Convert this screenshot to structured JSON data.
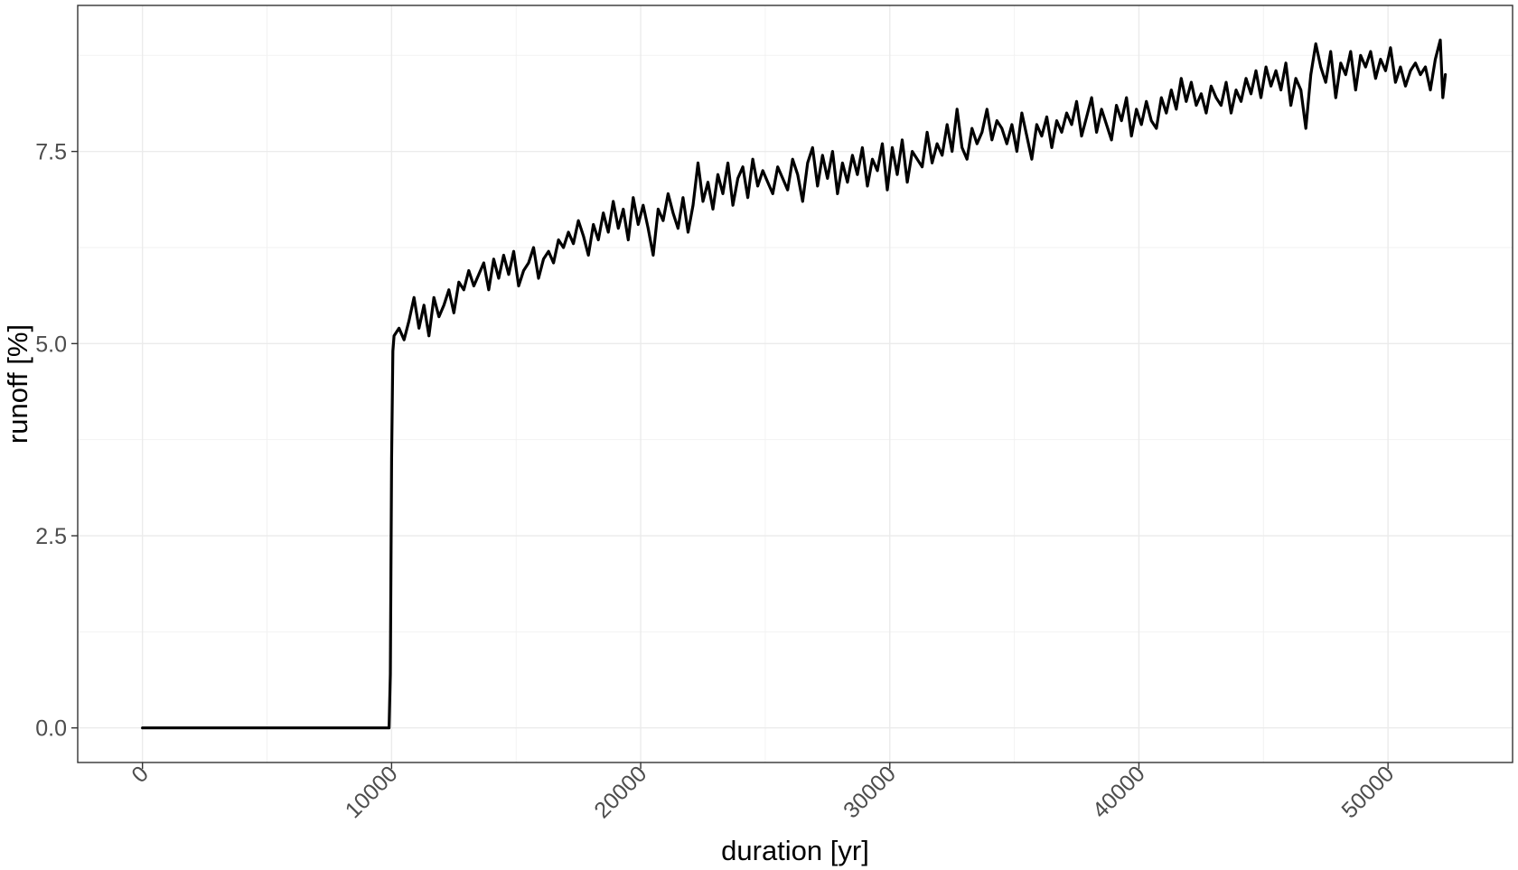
{
  "chart_data": {
    "type": "line",
    "title": "",
    "xlabel": "duration [yr]",
    "ylabel": "runoff [%]",
    "xlim": [
      -2600,
      55000
    ],
    "ylim": [
      -0.45,
      9.4
    ],
    "x_ticks": [
      0,
      10000,
      20000,
      30000,
      40000,
      50000
    ],
    "x_tick_labels": [
      "0",
      "10000",
      "20000",
      "30000",
      "40000",
      "50000"
    ],
    "y_ticks": [
      0,
      2.5,
      5,
      7.5
    ],
    "y_tick_labels": [
      "0.0",
      "2.5",
      "5.0",
      "7.5"
    ],
    "grid": true,
    "legend": "none",
    "line_color": "#000000",
    "series": [
      {
        "x": [
          0,
          9900,
          9950,
          10000,
          10050,
          10100,
          10300,
          10500,
          10700,
          10900,
          11100,
          11300,
          11500,
          11700,
          11900,
          12100,
          12300,
          12500,
          12700,
          12900,
          13100,
          13300,
          13500,
          13700,
          13900,
          14100,
          14300,
          14500,
          14700,
          14900,
          15100,
          15300,
          15500,
          15700,
          15900,
          16100,
          16300,
          16500,
          16700,
          16900,
          17100,
          17300,
          17500,
          17700,
          17900,
          18100,
          18300,
          18500,
          18700,
          18900,
          19100,
          19300,
          19500,
          19700,
          19900,
          20100,
          20300,
          20500,
          20700,
          20900,
          21100,
          21300,
          21500,
          21700,
          21900,
          22100,
          22300,
          22500,
          22700,
          22900,
          23100,
          23300,
          23500,
          23700,
          23900,
          24100,
          24300,
          24500,
          24700,
          24900,
          25100,
          25300,
          25500,
          25700,
          25900,
          26100,
          26300,
          26500,
          26700,
          26900,
          27100,
          27300,
          27500,
          27700,
          27900,
          28100,
          28300,
          28500,
          28700,
          28900,
          29100,
          29300,
          29500,
          29700,
          29900,
          30100,
          30300,
          30500,
          30700,
          30900,
          31100,
          31300,
          31500,
          31700,
          31900,
          32100,
          32300,
          32500,
          32700,
          32900,
          33100,
          33300,
          33500,
          33700,
          33900,
          34100,
          34300,
          34500,
          34700,
          34900,
          35100,
          35300,
          35500,
          35700,
          35900,
          36100,
          36300,
          36500,
          36700,
          36900,
          37100,
          37300,
          37500,
          37700,
          37900,
          38100,
          38300,
          38500,
          38700,
          38900,
          39100,
          39300,
          39500,
          39700,
          39900,
          40100,
          40300,
          40500,
          40700,
          40900,
          41100,
          41300,
          41500,
          41700,
          41900,
          42100,
          42300,
          42500,
          42700,
          42900,
          43100,
          43300,
          43500,
          43700,
          43900,
          44100,
          44300,
          44500,
          44700,
          44900,
          45100,
          45300,
          45500,
          45700,
          45900,
          46100,
          46300,
          46500,
          46700,
          46900,
          47100,
          47300,
          47500,
          47700,
          47900,
          48100,
          48300,
          48500,
          48700,
          48900,
          49100,
          49300,
          49500,
          49700,
          49900,
          50100,
          50300,
          50500,
          50700,
          50900,
          51100,
          51300,
          51500,
          51700,
          51900,
          52100,
          52200,
          52300
        ],
        "y": [
          0,
          0,
          0.7,
          3.5,
          4.9,
          5.1,
          5.2,
          5.05,
          5.3,
          5.6,
          5.2,
          5.5,
          5.1,
          5.6,
          5.35,
          5.5,
          5.7,
          5.4,
          5.8,
          5.7,
          5.95,
          5.75,
          5.9,
          6.05,
          5.7,
          6.1,
          5.85,
          6.15,
          5.9,
          6.2,
          5.75,
          5.95,
          6.05,
          6.25,
          5.85,
          6.1,
          6.2,
          6.05,
          6.35,
          6.25,
          6.45,
          6.3,
          6.6,
          6.4,
          6.15,
          6.55,
          6.35,
          6.7,
          6.45,
          6.85,
          6.5,
          6.75,
          6.35,
          6.9,
          6.55,
          6.8,
          6.5,
          6.15,
          6.75,
          6.6,
          6.95,
          6.7,
          6.5,
          6.9,
          6.45,
          6.8,
          7.35,
          6.85,
          7.1,
          6.75,
          7.2,
          6.95,
          7.35,
          6.8,
          7.15,
          7.3,
          6.9,
          7.4,
          7.05,
          7.25,
          7.1,
          6.95,
          7.3,
          7.15,
          7.0,
          7.4,
          7.2,
          6.85,
          7.35,
          7.55,
          7.05,
          7.45,
          7.15,
          7.5,
          6.95,
          7.35,
          7.1,
          7.45,
          7.2,
          7.55,
          7.05,
          7.4,
          7.25,
          7.6,
          7.0,
          7.55,
          7.2,
          7.65,
          7.1,
          7.5,
          7.4,
          7.3,
          7.75,
          7.35,
          7.6,
          7.45,
          7.85,
          7.5,
          8.05,
          7.55,
          7.4,
          7.8,
          7.6,
          7.75,
          8.05,
          7.65,
          7.9,
          7.8,
          7.6,
          7.85,
          7.5,
          8.0,
          7.7,
          7.4,
          7.85,
          7.7,
          7.95,
          7.55,
          7.9,
          7.75,
          8.0,
          7.85,
          8.15,
          7.7,
          7.95,
          8.2,
          7.75,
          8.05,
          7.85,
          7.65,
          8.1,
          7.9,
          8.2,
          7.7,
          8.05,
          7.85,
          8.15,
          7.9,
          7.8,
          8.2,
          8.0,
          8.3,
          8.05,
          8.45,
          8.15,
          8.4,
          8.1,
          8.25,
          8.0,
          8.35,
          8.2,
          8.1,
          8.4,
          8.0,
          8.3,
          8.15,
          8.45,
          8.25,
          8.55,
          8.2,
          8.6,
          8.35,
          8.55,
          8.3,
          8.65,
          8.1,
          8.45,
          8.3,
          7.8,
          8.5,
          8.9,
          8.6,
          8.4,
          8.8,
          8.2,
          8.65,
          8.5,
          8.8,
          8.3,
          8.75,
          8.6,
          8.8,
          8.45,
          8.7,
          8.55,
          8.85,
          8.4,
          8.6,
          8.35,
          8.55,
          8.65,
          8.5,
          8.6,
          8.3,
          8.7,
          8.95,
          8.2,
          8.5
        ]
      }
    ]
  }
}
